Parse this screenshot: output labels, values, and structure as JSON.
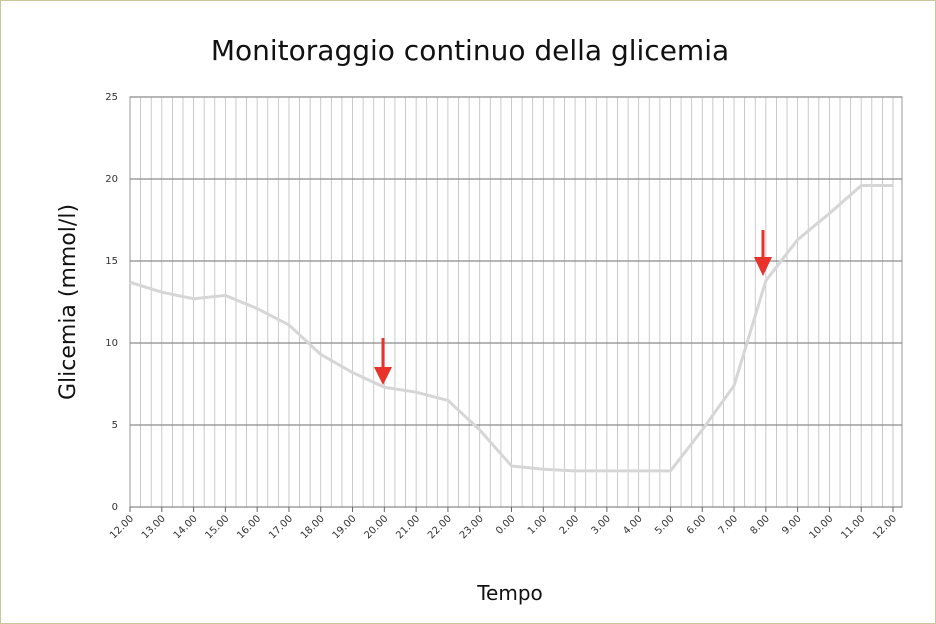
{
  "chart_data": {
    "type": "line",
    "title": "Monitoraggio continuo della glicemia",
    "x_label": "Tempo",
    "y_label": "Glicemia (mmol/l)",
    "categories": [
      "12.00",
      "13.00",
      "14.00",
      "15.00",
      "16.00",
      "17.00",
      "18.00",
      "19.00",
      "20.00",
      "21.00",
      "22.00",
      "23.00",
      "0.00",
      "1.00",
      "2.00",
      "3.00",
      "4.00",
      "5.00",
      "6.00",
      "7.00",
      "8.00",
      "9.00",
      "10.00",
      "11.00",
      "12.00"
    ],
    "series": [
      {
        "name": "Glicemia",
        "color": "#d6d6d6",
        "values": [
          13.7,
          13.1,
          12.7,
          12.9,
          12.1,
          11.1,
          9.3,
          8.2,
          7.3,
          7.0,
          6.5,
          4.7,
          2.5,
          2.3,
          2.2,
          2.2,
          2.2,
          2.2,
          4.7,
          7.4,
          13.8,
          16.3,
          17.9,
          19.6,
          19.6
        ]
      }
    ],
    "ylim": [
      0,
      25
    ],
    "yticks": [
      0,
      5,
      10,
      15,
      20,
      25
    ],
    "grid": true
  }
}
